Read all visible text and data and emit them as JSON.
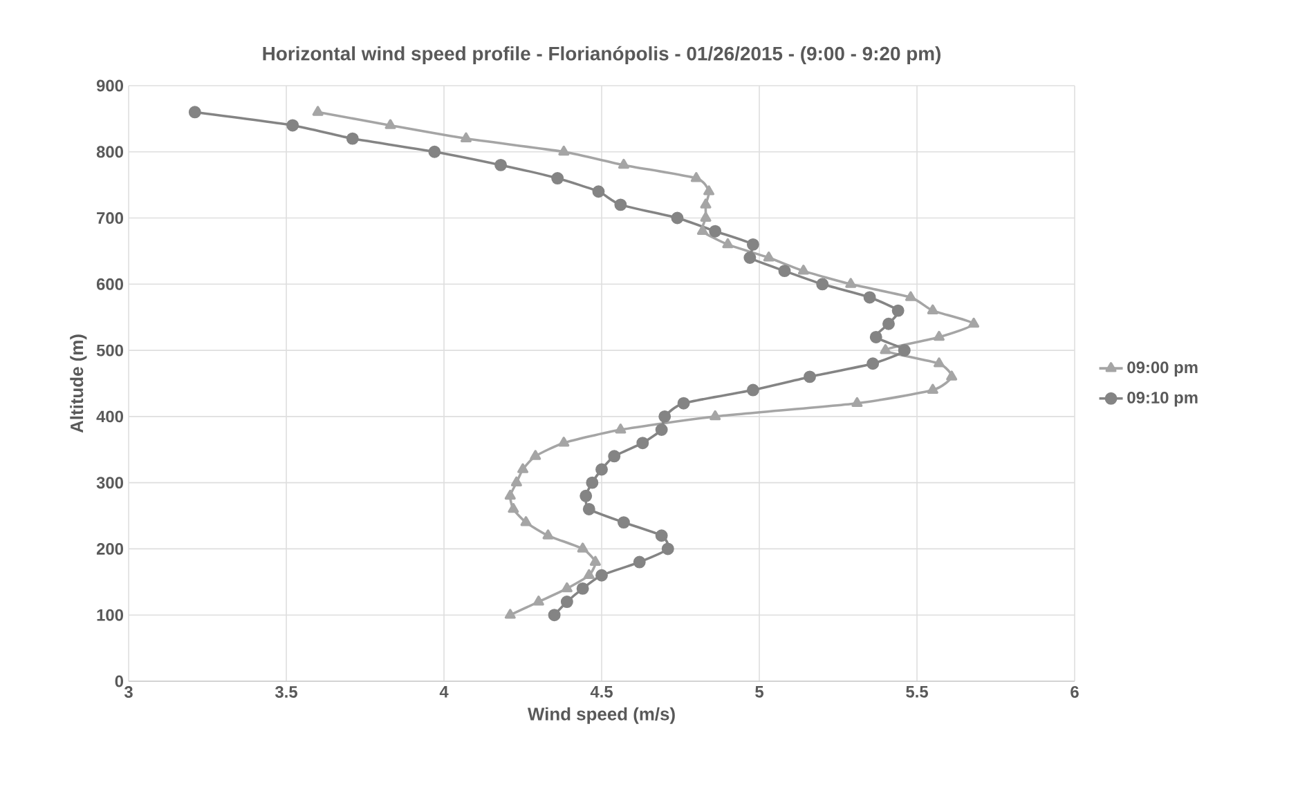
{
  "chart_data": {
    "type": "line",
    "title": "Horizontal wind speed profile - Florianópolis - 01/26/2015 - (9:00 - 9:20 pm)",
    "xlabel": "Wind speed (m/s)",
    "ylabel": "Altitude (m)",
    "xlim": [
      3,
      6
    ],
    "xticks": [
      3,
      3.5,
      4,
      4.5,
      5,
      5.5,
      6
    ],
    "ylim": [
      0,
      900
    ],
    "yticks": [
      0,
      100,
      200,
      300,
      400,
      500,
      600,
      700,
      800,
      900
    ],
    "grid": true,
    "legend": "right",
    "series": [
      {
        "name": "09:00 pm",
        "color": "#a5a5a5",
        "marker": "triangle",
        "x": [
          4.21,
          4.3,
          4.39,
          4.46,
          4.48,
          4.44,
          4.33,
          4.26,
          4.22,
          4.21,
          4.23,
          4.25,
          4.29,
          4.38,
          4.56,
          4.86,
          5.31,
          5.55,
          5.61,
          5.57,
          5.4,
          5.57,
          5.68,
          5.55,
          5.48,
          5.29,
          5.14,
          5.03,
          4.9,
          4.82,
          4.83,
          4.83,
          4.84,
          4.8,
          4.57,
          4.38,
          4.07,
          3.83,
          3.6
        ],
        "values": [
          100,
          120,
          140,
          160,
          180,
          200,
          220,
          240,
          260,
          280,
          300,
          320,
          340,
          360,
          380,
          400,
          420,
          440,
          460,
          480,
          500,
          520,
          540,
          560,
          580,
          600,
          620,
          640,
          660,
          680,
          700,
          720,
          740,
          760,
          780,
          800,
          820,
          840,
          860
        ]
      },
      {
        "name": "09:10 pm",
        "color": "#848484",
        "marker": "circle",
        "x": [
          4.35,
          4.39,
          4.44,
          4.5,
          4.62,
          4.71,
          4.69,
          4.57,
          4.46,
          4.45,
          4.47,
          4.5,
          4.54,
          4.63,
          4.69,
          4.7,
          4.76,
          4.98,
          5.16,
          5.36,
          5.46,
          5.37,
          5.41,
          5.44,
          5.35,
          5.2,
          5.08,
          4.97,
          4.98,
          4.86,
          4.74,
          4.56,
          4.49,
          4.36,
          4.18,
          3.97,
          3.71,
          3.52,
          3.21
        ],
        "values": [
          100,
          120,
          140,
          160,
          180,
          200,
          220,
          240,
          260,
          280,
          300,
          320,
          340,
          360,
          380,
          400,
          420,
          440,
          460,
          480,
          500,
          520,
          540,
          560,
          580,
          600,
          620,
          640,
          660,
          680,
          700,
          720,
          740,
          760,
          780,
          800,
          820,
          840,
          860
        ]
      }
    ]
  }
}
